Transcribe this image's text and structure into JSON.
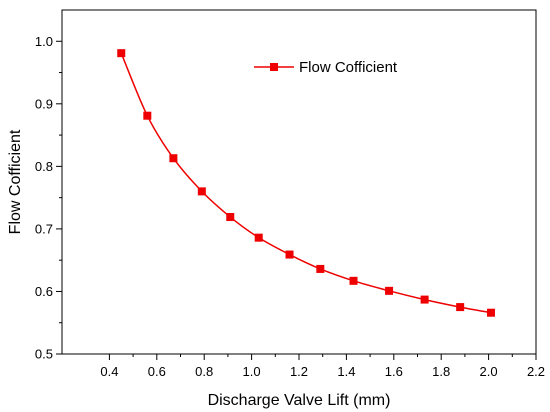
{
  "chart_data": {
    "type": "line",
    "xlabel": "Discharge Valve Lift (mm)",
    "ylabel": "Flow Cofficient",
    "xlim": [
      0.2,
      2.2
    ],
    "ylim": [
      0.5,
      1.05
    ],
    "xticks": [
      "0.4",
      "0.6",
      "0.8",
      "1.0",
      "1.2",
      "1.4",
      "1.6",
      "1.8",
      "2.0",
      "2.2"
    ],
    "yticks": [
      "0.5",
      "0.6",
      "0.7",
      "0.8",
      "0.9",
      "1.0"
    ],
    "grid": false,
    "legend_position": "top-right",
    "series": [
      {
        "name": "Flow Cofficient",
        "color": "#ee0000",
        "marker": "square",
        "x": [
          0.45,
          0.56,
          0.67,
          0.79,
          0.91,
          1.03,
          1.16,
          1.29,
          1.43,
          1.58,
          1.73,
          1.88,
          2.01
        ],
        "y": [
          0.981,
          0.881,
          0.813,
          0.76,
          0.719,
          0.686,
          0.659,
          0.636,
          0.617,
          0.601,
          0.587,
          0.575,
          0.566
        ]
      }
    ]
  }
}
